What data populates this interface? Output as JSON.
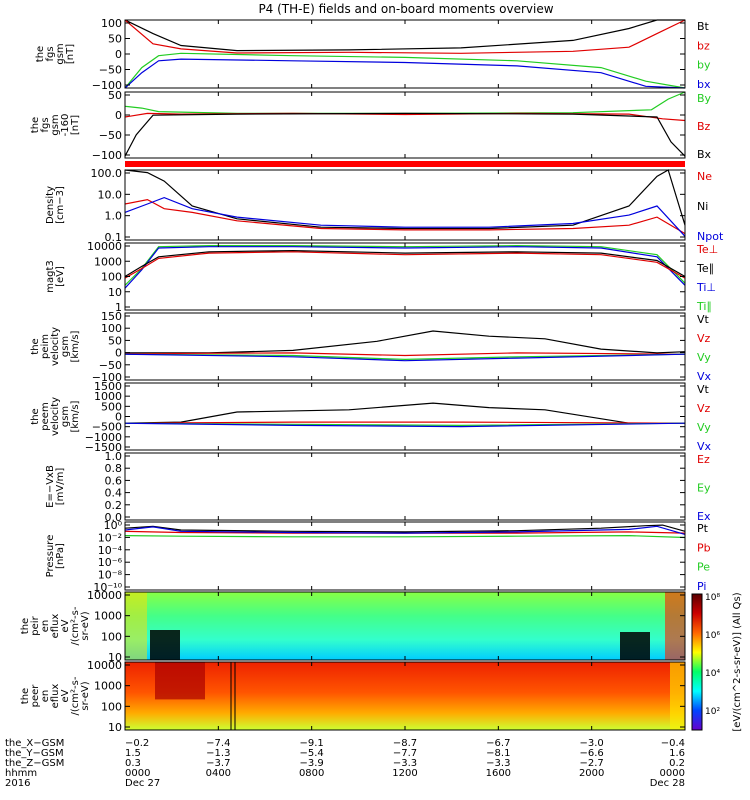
{
  "title": "P4 (TH-E) fields and on-board moments overview",
  "colors": {
    "black": "#000000",
    "red": "#e00000",
    "green": "#22cc22",
    "blue": "#0000dd"
  },
  "chart_data": [
    {
      "type": "line",
      "ylabel": [
        "the",
        "fgs",
        "gsm",
        "[nT]"
      ],
      "yticks": [
        "100",
        "50",
        "0",
        "−50",
        "−100"
      ],
      "ylim": [
        -100,
        100
      ],
      "legend": [
        {
          "label": "Bt",
          "color": "black"
        },
        {
          "label": "bz",
          "color": "red"
        },
        {
          "label": "by",
          "color": "green"
        },
        {
          "label": "bx",
          "color": "blue"
        }
      ],
      "series": [
        {
          "name": "Bt",
          "color": "black",
          "x": [
            0,
            0.05,
            0.1,
            0.2,
            0.4,
            0.6,
            0.8,
            0.9,
            0.95,
            1
          ],
          "y": [
            100,
            60,
            25,
            10,
            12,
            18,
            40,
            75,
            100,
            100
          ]
        },
        {
          "name": "bz",
          "color": "red",
          "x": [
            0,
            0.05,
            0.1,
            0.2,
            0.4,
            0.6,
            0.8,
            0.9,
            0.95,
            1
          ],
          "y": [
            100,
            30,
            15,
            3,
            5,
            2,
            8,
            20,
            60,
            100
          ]
        },
        {
          "name": "by",
          "color": "green",
          "x": [
            0,
            0.03,
            0.06,
            0.1,
            0.3,
            0.5,
            0.7,
            0.85,
            0.93,
            1
          ],
          "y": [
            -100,
            -40,
            -5,
            2,
            -5,
            -10,
            -20,
            -40,
            -80,
            -100
          ]
        },
        {
          "name": "bx",
          "color": "blue",
          "x": [
            0,
            0.03,
            0.06,
            0.1,
            0.3,
            0.5,
            0.7,
            0.85,
            0.93,
            1
          ],
          "y": [
            -100,
            -55,
            -20,
            -15,
            -20,
            -25,
            -35,
            -55,
            -95,
            -100
          ]
        }
      ]
    },
    {
      "type": "line",
      "ylabel": [
        "the",
        "fgs",
        "gsm",
        "-160",
        "[nT]"
      ],
      "yticks": [
        "50",
        "0",
        "−50",
        "−100"
      ],
      "ylim": [
        -125,
        60
      ],
      "legend": [
        {
          "label": "By",
          "color": "green"
        },
        {
          "label": "Bz",
          "color": "red"
        },
        {
          "label": "Bx",
          "color": "black"
        }
      ],
      "series": [
        {
          "name": "By",
          "color": "green",
          "x": [
            0,
            0.03,
            0.06,
            0.2,
            0.5,
            0.8,
            0.94,
            0.97,
            1
          ],
          "y": [
            20,
            15,
            5,
            0,
            0,
            2,
            10,
            40,
            60
          ]
        },
        {
          "name": "Bz",
          "color": "red",
          "x": [
            0,
            0.04,
            0.1,
            0.3,
            0.5,
            0.7,
            0.9,
            0.96,
            1
          ],
          "y": [
            -10,
            0,
            -2,
            0,
            -3,
            0,
            -2,
            -15,
            -20
          ]
        },
        {
          "name": "Bx",
          "color": "black",
          "x": [
            0,
            0.02,
            0.05,
            0.2,
            0.5,
            0.8,
            0.95,
            0.975,
            1
          ],
          "y": [
            -120,
            -60,
            -5,
            -2,
            0,
            -2,
            -10,
            -80,
            -120
          ]
        }
      ]
    },
    {
      "type": "line",
      "ylabel": [
        "Density",
        "[cm−3]"
      ],
      "yscale": "log",
      "yticks": [
        "100.0",
        "10.0",
        "1.0",
        "0.1"
      ],
      "ylim": [
        0.1,
        200
      ],
      "legend": [
        {
          "label": "Ne",
          "color": "red"
        },
        {
          "label": "Ni",
          "color": "black"
        },
        {
          "label": "Npot",
          "color": "blue"
        }
      ],
      "series": [
        {
          "name": "Ni",
          "color": "black",
          "x": [
            0,
            0.04,
            0.07,
            0.12,
            0.2,
            0.35,
            0.5,
            0.65,
            0.8,
            0.9,
            0.95,
            0.97,
            1
          ],
          "y": [
            200,
            150,
            60,
            4,
            1,
            0.4,
            0.35,
            0.35,
            0.5,
            4,
            100,
            200,
            0.5
          ]
        },
        {
          "name": "Ne",
          "color": "red",
          "x": [
            0,
            0.04,
            0.07,
            0.12,
            0.2,
            0.35,
            0.5,
            0.65,
            0.8,
            0.9,
            0.95,
            1
          ],
          "y": [
            5,
            8,
            3,
            2,
            0.8,
            0.35,
            0.3,
            0.3,
            0.35,
            0.5,
            1.2,
            0.2
          ]
        },
        {
          "name": "Npot",
          "color": "blue",
          "x": [
            0,
            0.04,
            0.07,
            0.12,
            0.2,
            0.35,
            0.5,
            0.65,
            0.8,
            0.9,
            0.95,
            1
          ],
          "y": [
            2,
            5,
            10,
            3,
            1.2,
            0.5,
            0.4,
            0.4,
            0.6,
            1.5,
            4,
            0.15
          ]
        }
      ]
    },
    {
      "type": "line",
      "ylabel": [
        "magt3",
        "[eV]"
      ],
      "yscale": "log",
      "yticks": [
        "10000",
        "1000",
        "100",
        "10",
        "1"
      ],
      "ylim": [
        1,
        10000
      ],
      "legend": [
        {
          "label": "Te⊥",
          "color": "red"
        },
        {
          "label": "Te∥",
          "color": "black"
        },
        {
          "label": "Ti⊥",
          "color": "blue"
        },
        {
          "label": "Ti∥",
          "color": "green"
        }
      ],
      "series": [
        {
          "name": "Ti∥",
          "color": "green",
          "x": [
            0,
            0.03,
            0.06,
            0.15,
            0.3,
            0.5,
            0.7,
            0.85,
            0.95,
            1
          ],
          "y": [
            30,
            300,
            6000,
            7000,
            7000,
            6000,
            7000,
            6000,
            2000,
            40
          ]
        },
        {
          "name": "Ti⊥",
          "color": "blue",
          "x": [
            0,
            0.03,
            0.06,
            0.15,
            0.3,
            0.5,
            0.7,
            0.85,
            0.95,
            1
          ],
          "y": [
            20,
            250,
            5000,
            6000,
            6000,
            5000,
            6000,
            5000,
            1500,
            30
          ]
        },
        {
          "name": "Te∥",
          "color": "black",
          "x": [
            0,
            0.03,
            0.06,
            0.15,
            0.3,
            0.5,
            0.7,
            0.85,
            0.95,
            1
          ],
          "y": [
            100,
            400,
            1500,
            3000,
            3500,
            2500,
            3000,
            2500,
            900,
            100
          ]
        },
        {
          "name": "Te⊥",
          "color": "red",
          "x": [
            0,
            0.03,
            0.06,
            0.15,
            0.3,
            0.5,
            0.7,
            0.85,
            0.95,
            1
          ],
          "y": [
            80,
            300,
            1200,
            2500,
            3000,
            2000,
            2500,
            2000,
            700,
            80
          ]
        }
      ]
    },
    {
      "type": "line",
      "ylabel": [
        "the",
        "peim",
        "velocity",
        "gsm",
        "[km/s]"
      ],
      "yticks": [
        "150",
        "100",
        "50",
        "0",
        "−50",
        "−100"
      ],
      "ylim": [
        -100,
        160
      ],
      "legend": [
        {
          "label": "Vt",
          "color": "black"
        },
        {
          "label": "Vz",
          "color": "red"
        },
        {
          "label": "Vy",
          "color": "green"
        },
        {
          "label": "Vx",
          "color": "blue"
        }
      ],
      "series": [
        {
          "name": "Vt",
          "color": "black",
          "x": [
            0,
            0.15,
            0.3,
            0.45,
            0.55,
            0.65,
            0.75,
            0.85,
            0.95,
            1
          ],
          "y": [
            5,
            5,
            15,
            50,
            90,
            70,
            60,
            20,
            5,
            10
          ]
        },
        {
          "name": "Vz",
          "color": "red",
          "x": [
            0,
            0.3,
            0.5,
            0.7,
            1
          ],
          "y": [
            2,
            5,
            -5,
            5,
            0
          ]
        },
        {
          "name": "Vy",
          "color": "green",
          "x": [
            0,
            0.3,
            0.5,
            0.7,
            1
          ],
          "y": [
            0,
            -5,
            -20,
            -10,
            0
          ]
        },
        {
          "name": "Vx",
          "color": "blue",
          "x": [
            0,
            0.3,
            0.5,
            0.7,
            1
          ],
          "y": [
            0,
            -10,
            -25,
            -15,
            0
          ]
        }
      ]
    },
    {
      "type": "line",
      "ylabel": [
        "the",
        "peem",
        "velocity",
        "gsm",
        "[km/s]"
      ],
      "yticks": [
        "1500",
        "1000",
        "500",
        "0",
        "−500",
        "−1000",
        "−1500"
      ],
      "ylim": [
        -1500,
        1500
      ],
      "legend": [
        {
          "label": "Vt",
          "color": "black"
        },
        {
          "label": "Vz",
          "color": "red"
        },
        {
          "label": "Vy",
          "color": "green"
        },
        {
          "label": "Vx",
          "color": "blue"
        }
      ],
      "series": [
        {
          "name": "Vt",
          "color": "black",
          "x": [
            0,
            0.1,
            0.2,
            0.4,
            0.55,
            0.65,
            0.75,
            0.9,
            1
          ],
          "y": [
            -300,
            -250,
            200,
            300,
            600,
            400,
            300,
            -300,
            -300
          ]
        },
        {
          "name": "Vz",
          "color": "red",
          "x": [
            0,
            0.3,
            0.6,
            1
          ],
          "y": [
            -300,
            -250,
            -250,
            -300
          ]
        },
        {
          "name": "Vy",
          "color": "green",
          "x": [
            0,
            0.3,
            0.6,
            1
          ],
          "y": [
            -300,
            -350,
            -400,
            -300
          ]
        },
        {
          "name": "Vx",
          "color": "blue",
          "x": [
            0,
            0.3,
            0.6,
            1
          ],
          "y": [
            -300,
            -400,
            -450,
            -300
          ]
        }
      ]
    },
    {
      "type": "line",
      "ylabel": [
        "E=−VxB",
        "[mV/m]"
      ],
      "yticks": [
        "1.0",
        "0.8",
        "0.6",
        "0.4",
        "0.2",
        "0.0"
      ],
      "ylim": [
        0,
        1
      ],
      "legend": [
        {
          "label": "Ez",
          "color": "red"
        },
        {
          "label": "Ey",
          "color": "green"
        },
        {
          "label": "Ex",
          "color": "blue"
        }
      ],
      "series": []
    },
    {
      "type": "line",
      "ylabel": [
        "Pressure",
        "[nPa]"
      ],
      "yscale": "log",
      "yticks": [
        "10⁰",
        "10⁻²",
        "10⁻⁴",
        "10⁻⁶",
        "10⁻⁸",
        "10⁻¹⁰"
      ],
      "ylim": [
        -10,
        1
      ],
      "legend": [
        {
          "label": "Pt",
          "color": "black"
        },
        {
          "label": "Pb",
          "color": "red"
        },
        {
          "label": "Pe",
          "color": "green"
        },
        {
          "label": "Pi",
          "color": "blue"
        }
      ],
      "series": [
        {
          "name": "Pt",
          "color": "black",
          "x": [
            0,
            0.05,
            0.1,
            0.3,
            0.5,
            0.7,
            0.85,
            0.93,
            0.96,
            1
          ],
          "y": [
            0,
            0.3,
            -0.3,
            -0.5,
            -0.6,
            -0.4,
            0,
            0.4,
            0.5,
            -0.5
          ]
        },
        {
          "name": "Pb",
          "color": "red",
          "x": [
            0,
            0.1,
            0.3,
            0.5,
            0.7,
            0.9,
            1
          ],
          "y": [
            -0.5,
            -0.7,
            -0.8,
            -0.8,
            -0.8,
            -0.6,
            -0.8
          ]
        },
        {
          "name": "Pe",
          "color": "green",
          "x": [
            0,
            0.1,
            0.3,
            0.5,
            0.7,
            0.9,
            1
          ],
          "y": [
            -1.2,
            -1.3,
            -1.4,
            -1.4,
            -1.3,
            -1.2,
            -1.5
          ]
        },
        {
          "name": "Pi",
          "color": "blue",
          "x": [
            0,
            0.05,
            0.1,
            0.3,
            0.5,
            0.7,
            0.9,
            0.95,
            1
          ],
          "y": [
            -0.3,
            0.2,
            -0.5,
            -0.7,
            -0.8,
            -0.6,
            -0.2,
            0.3,
            -1
          ]
        }
      ]
    },
    {
      "type": "heatmap",
      "ylabel": [
        "the",
        "peir",
        "en",
        "eflux",
        "eV",
        "/(cm²-s-",
        "sr-eV)"
      ],
      "yscale": "log",
      "yticks": [
        "10000",
        "1000",
        "100",
        "10"
      ],
      "ylim": [
        5,
        20000
      ]
    },
    {
      "type": "heatmap",
      "ylabel": [
        "the",
        "peer",
        "en",
        "eflux",
        "eV",
        "/(cm²-s-",
        "sr-eV)"
      ],
      "yscale": "log",
      "yticks": [
        "10000",
        "1000",
        "100",
        "10"
      ],
      "ylim": [
        5,
        20000
      ]
    }
  ],
  "colorbar": {
    "ticks": [
      "10⁸",
      "10⁶",
      "10⁴",
      "10²"
    ],
    "label": "[eV/(cm^2-s-sr-eV)] (All Qs)",
    "stops": [
      "#5a0000",
      "#cc0000",
      "#ff6600",
      "#ffff00",
      "#00ff66",
      "#00ffff",
      "#0044ff",
      "#6600cc"
    ]
  },
  "xaxis": {
    "tick_labels": [
      "0000",
      "0400",
      "0800",
      "1200",
      "1600",
      "2000",
      "0000"
    ],
    "rows": [
      {
        "label": "the_X−GSM",
        "values": [
          "−0.2",
          "−7.4",
          "−9.1",
          "−8.7",
          "−6.7",
          "−3.0",
          "−0.4"
        ]
      },
      {
        "label": "the_Y−GSM",
        "values": [
          "1.5",
          "−1.3",
          "−5.4",
          "−7.7",
          "−8.1",
          "−6.6",
          "1.6"
        ]
      },
      {
        "label": "the_Z−GSM",
        "values": [
          "0.3",
          "−3.7",
          "−3.9",
          "−3.3",
          "−3.3",
          "−2.7",
          "0.2"
        ]
      },
      {
        "label": "hhmm",
        "values": [
          "0000",
          "0400",
          "0800",
          "1200",
          "1600",
          "2000",
          "0000"
        ]
      },
      {
        "label": "2016",
        "values": [
          "Dec 27",
          "",
          "",
          "",
          "",
          "",
          "Dec 28"
        ]
      }
    ]
  }
}
